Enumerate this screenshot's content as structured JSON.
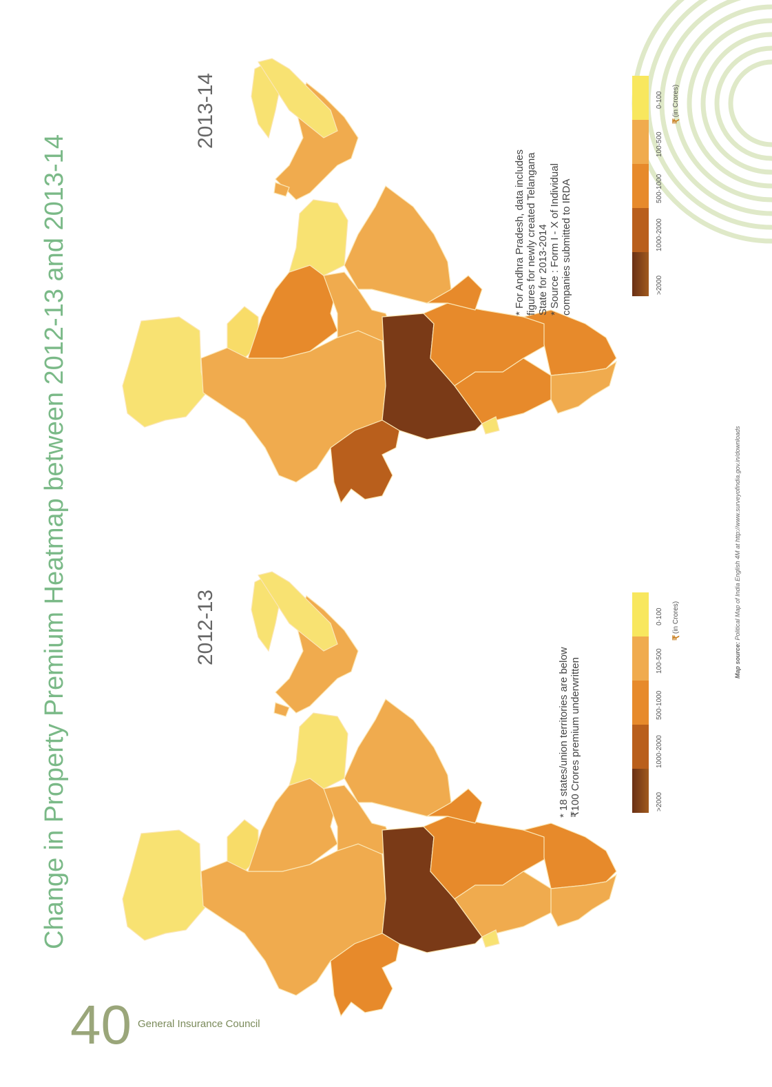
{
  "page": {
    "title": "Change in Property Premium Heatmap between 2012-13 and 2013-14",
    "page_number": "40",
    "org": "General Insurance Council",
    "map_source_label": "Map source:",
    "map_source_text": "Political Map of India English 4M at http://www.surveyofindia.gov.in/downloads"
  },
  "legend": {
    "unit": "(in Crores)",
    "currency_symbol": "₹",
    "bins": [
      {
        "label": "0-100",
        "color": "#f8e75e"
      },
      {
        "label": "100-500",
        "color": "#f0ab4e"
      },
      {
        "label": "500-1000",
        "color": "#e78a2b"
      },
      {
        "label": "1000-2000",
        "color": "#b95f1c"
      },
      {
        "label": ">2000",
        "color": "#7a3a17"
      }
    ]
  },
  "maps": [
    {
      "year": "2013-14",
      "notes": [
        "* For Andhra Pradesh, data includes",
        "figures for newly created Telangana",
        "State for 2013-2014",
        "* Source : Form I - X of Individual",
        "companies submitted to IRDA"
      ]
    },
    {
      "year": "2012-13",
      "notes": [
        "* 18 states/union territories are below",
        "₹100 Crores premium underwritten"
      ]
    }
  ]
}
